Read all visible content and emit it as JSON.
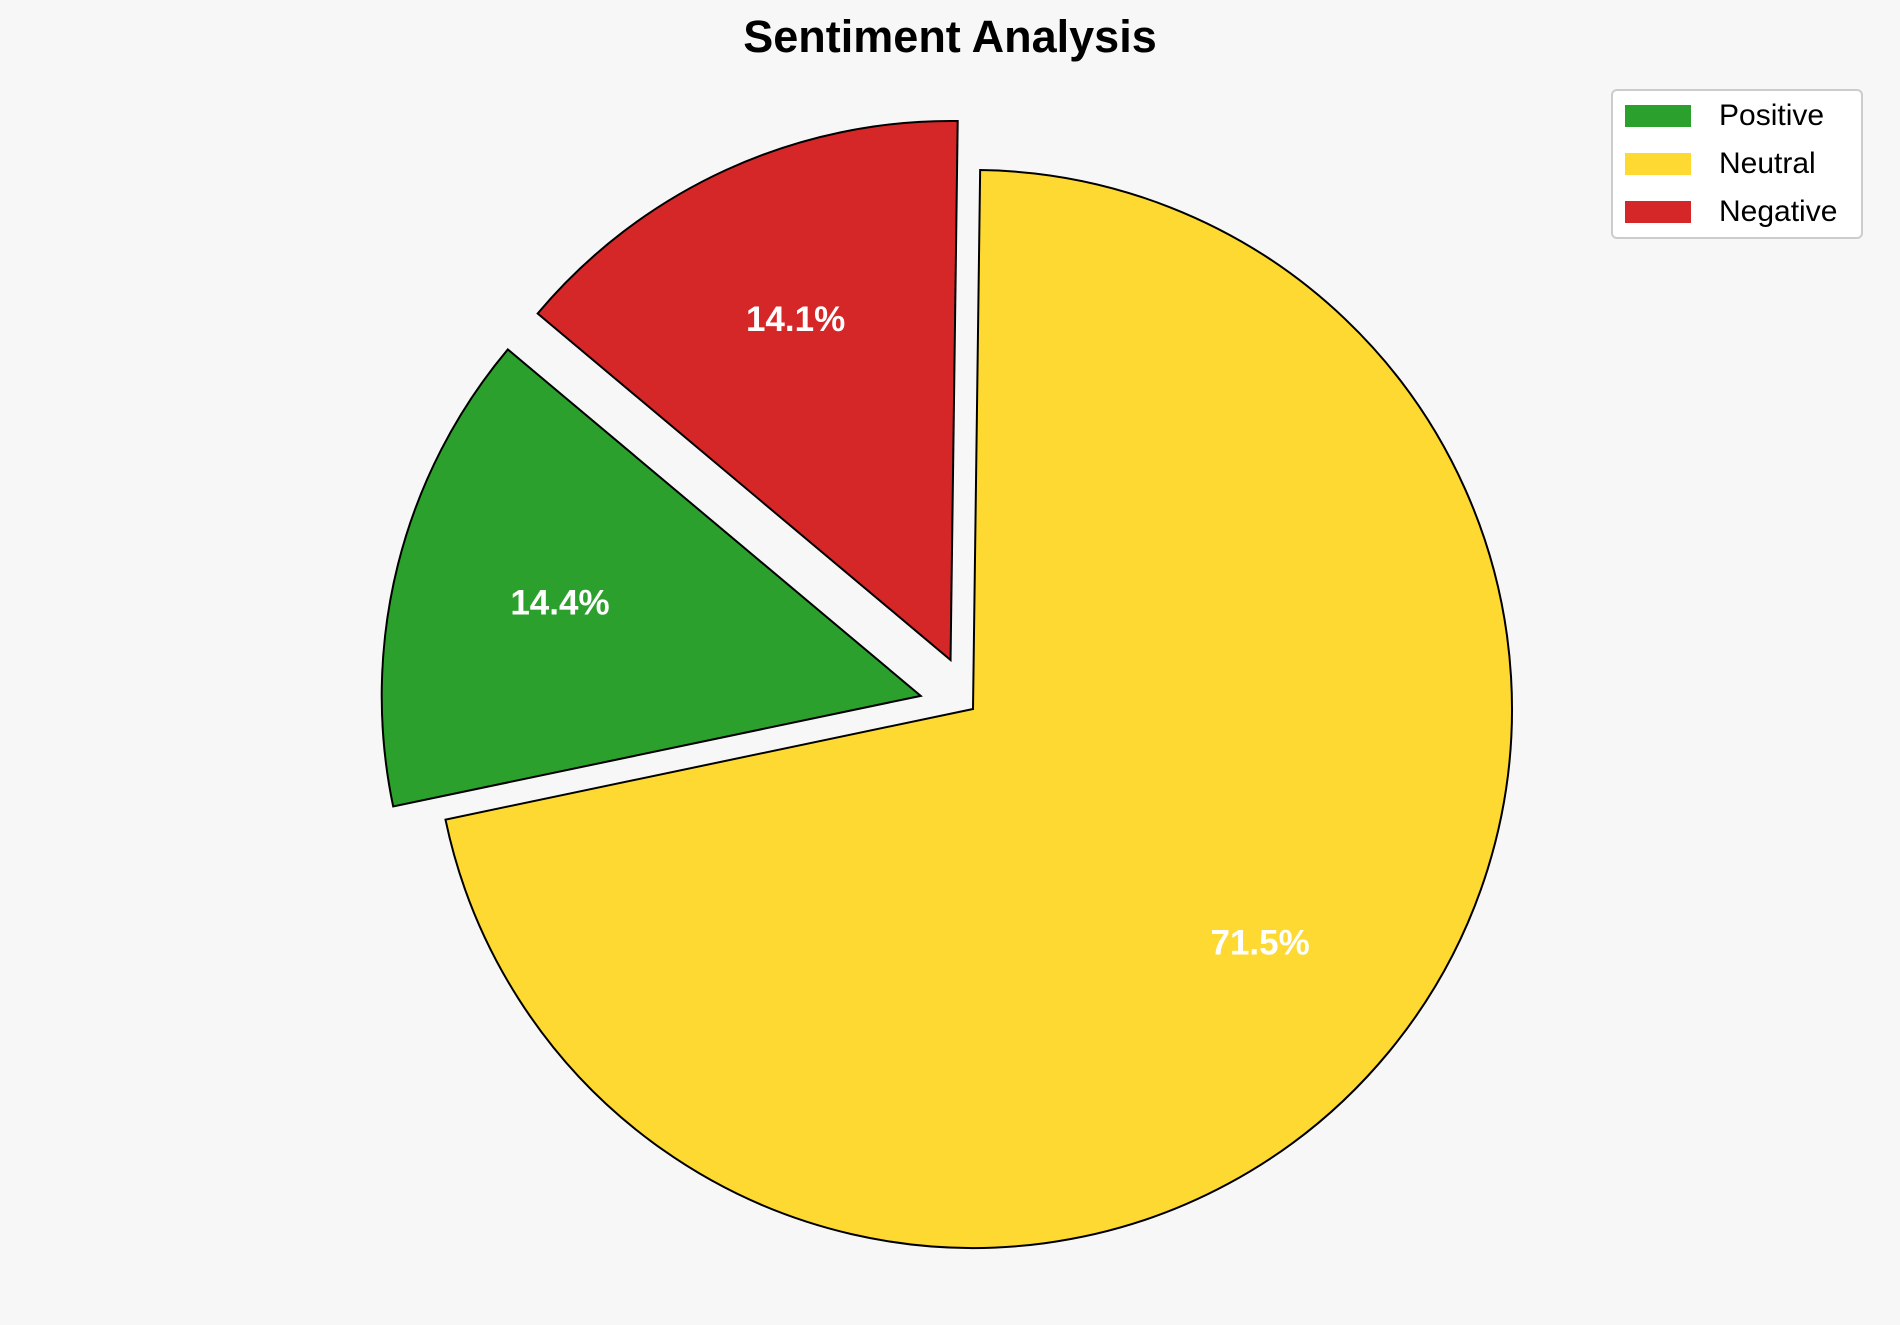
{
  "chart_data": {
    "type": "pie",
    "title": "Sentiment Analysis",
    "categories": [
      "Positive",
      "Neutral",
      "Negative"
    ],
    "values": [
      14.4,
      71.5,
      14.1
    ],
    "value_labels": [
      "14.4%",
      "71.5%",
      "14.1%"
    ],
    "colors": [
      "#2ca02c",
      "#fdd931",
      "#d62728"
    ],
    "legend": "upper right"
  }
}
